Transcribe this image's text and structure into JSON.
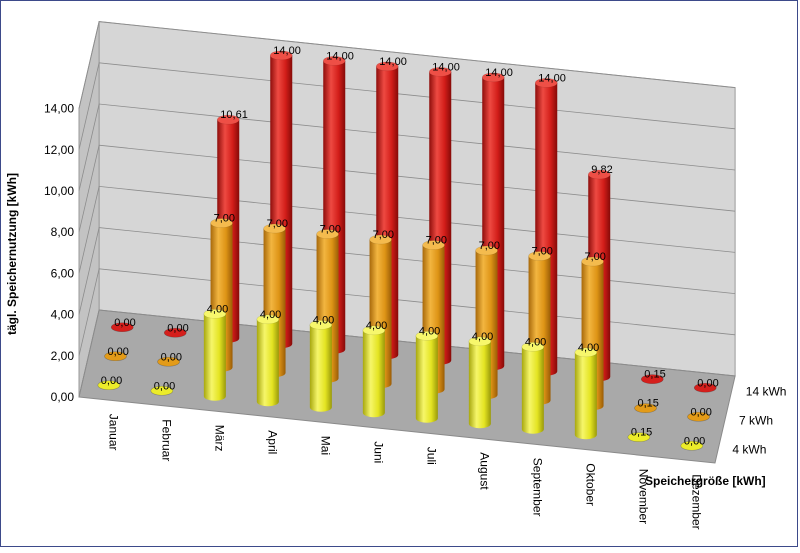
{
  "chart_data": {
    "type": "bar",
    "style": "3d-cylinder",
    "categories": [
      "Januar",
      "Februar",
      "März",
      "April",
      "Mai",
      "Juni",
      "Juli",
      "August",
      "September",
      "Oktober",
      "November",
      "Dezember"
    ],
    "ylabel": "tägl. Speichernutzung [kWh]",
    "zlabel": "Speichergröße [kWh]",
    "ylim": [
      0,
      14
    ],
    "yticks": [
      "0,00",
      "2,00",
      "4,00",
      "6,00",
      "8,00",
      "10,00",
      "12,00",
      "14,00"
    ],
    "grid": true,
    "series": [
      {
        "name": "4 kWh",
        "color": "#ecec2a",
        "values": [
          0,
          0,
          4,
          4,
          4,
          4,
          4,
          4,
          4,
          4,
          0.15,
          0
        ],
        "labels": [
          "0,00",
          "0,00",
          "4,00",
          "4,00",
          "4,00",
          "4,00",
          "4,00",
          "4,00",
          "4,00",
          "4,00",
          "0,15",
          "0,00"
        ]
      },
      {
        "name": "7 kWh",
        "color": "#e39b18",
        "values": [
          0,
          0,
          7,
          7,
          7,
          7,
          7,
          7,
          7,
          7,
          0.15,
          0
        ],
        "labels": [
          "0,00",
          "0,00",
          "7,00",
          "7,00",
          "7,00",
          "7,00",
          "7,00",
          "7,00",
          "7,00",
          "7,00",
          "0,15",
          "0,00"
        ]
      },
      {
        "name": "14 kWh",
        "color": "#d51f1c",
        "values": [
          0,
          0,
          10.61,
          14,
          14,
          14,
          14,
          14,
          14,
          9.82,
          0.15,
          0
        ],
        "labels": [
          "0,00",
          "0,00",
          "10,61",
          "14,00",
          "14,00",
          "14,00",
          "14,00",
          "14,00",
          "14,00",
          "9,82",
          "0,15",
          "0,00"
        ]
      }
    ]
  }
}
